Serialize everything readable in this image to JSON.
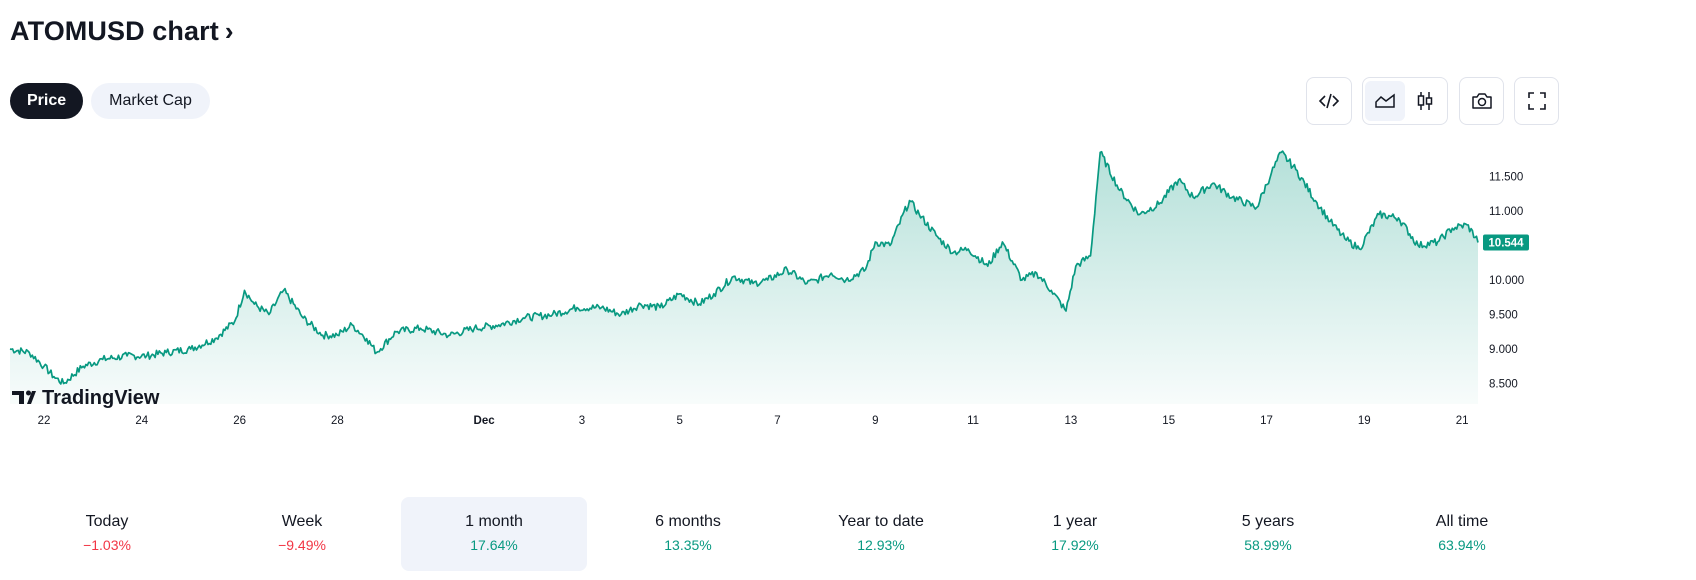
{
  "header": {
    "title": "ATOMUSD chart",
    "chevron": "›"
  },
  "tabs": [
    {
      "label": "Price",
      "active": true
    },
    {
      "label": "Market Cap",
      "active": false
    }
  ],
  "toolbar": {
    "buttons": [
      {
        "icon": "embed-code-icon"
      },
      {
        "icon": "area-chart-icon",
        "selected": true
      },
      {
        "icon": "candlestick-icon"
      },
      {
        "icon": "camera-icon"
      },
      {
        "icon": "fullscreen-icon"
      }
    ]
  },
  "logo": {
    "text": "TradingView"
  },
  "colors": {
    "line": "#089981",
    "up": "#089981",
    "down": "#f23645",
    "label_bg": "#089981"
  },
  "periods": [
    {
      "label": "Today",
      "change": "−1.03%",
      "direction": "down"
    },
    {
      "label": "Week",
      "change": "−9.49%",
      "direction": "down"
    },
    {
      "label": "1 month",
      "change": "17.64%",
      "direction": "up",
      "selected": true
    },
    {
      "label": "6 months",
      "change": "13.35%",
      "direction": "up"
    },
    {
      "label": "Year to date",
      "change": "12.93%",
      "direction": "up"
    },
    {
      "label": "1 year",
      "change": "17.92%",
      "direction": "up"
    },
    {
      "label": "5 years",
      "change": "58.99%",
      "direction": "up"
    },
    {
      "label": "All time",
      "change": "63.94%",
      "direction": "up"
    }
  ],
  "chart_data": {
    "type": "area",
    "symbol": "ATOMUSD",
    "x_ticks": [
      "22",
      "24",
      "26",
      "28",
      "Dec",
      "3",
      "5",
      "7",
      "9",
      "11",
      "13",
      "15",
      "17",
      "19",
      "21"
    ],
    "x_tick_days": [
      0,
      2,
      4,
      6,
      9,
      11,
      13,
      15,
      17,
      19,
      21,
      23,
      25,
      27,
      29
    ],
    "y_ticks": [
      "11.500",
      "11.000",
      "10.000",
      "9.500",
      "9.000",
      "8.500"
    ],
    "y_tick_values": [
      11.5,
      11.0,
      10.0,
      9.5,
      9.0,
      8.5
    ],
    "ylim": [
      8.3,
      12.0
    ],
    "xlim": [
      -0.7,
      29.35
    ],
    "last_price": 10.544,
    "last_price_label": "10.544",
    "series": [
      {
        "x": [
          -0.7,
          -0.3,
          0.0,
          0.2,
          0.4,
          0.8,
          1.2,
          1.7,
          2.1,
          2.5,
          3.0,
          3.5,
          3.9,
          4.1,
          4.3,
          4.6,
          4.9,
          5.3,
          5.7,
          6.0,
          6.3,
          6.6,
          6.8,
          7.2,
          7.7,
          8.3,
          8.8,
          9.3,
          9.8,
          10.4,
          10.9,
          11.4,
          11.8,
          12.2,
          12.6,
          13.0,
          13.4,
          13.7,
          14.1,
          14.5,
          14.8,
          15.2,
          15.6,
          15.8,
          16.1,
          16.4,
          16.8,
          17.0,
          17.3,
          17.7,
          17.9,
          18.3,
          18.6,
          18.9,
          19.3,
          19.6,
          20.0,
          20.3,
          20.6,
          20.9,
          21.1,
          21.4,
          21.6,
          22.0,
          22.4,
          22.8,
          23.2,
          23.5,
          23.9,
          24.3,
          24.8,
          25.1,
          25.3,
          25.6,
          26.0,
          26.3,
          26.6,
          26.9,
          27.3,
          27.7,
          28.1,
          28.5,
          28.8,
          29.1,
          29.35
        ],
        "y": [
          9.0,
          8.95,
          8.75,
          8.6,
          8.5,
          8.75,
          8.85,
          8.9,
          8.9,
          8.95,
          9.0,
          9.15,
          9.4,
          9.85,
          9.65,
          9.5,
          9.85,
          9.45,
          9.2,
          9.2,
          9.35,
          9.15,
          8.95,
          9.25,
          9.3,
          9.2,
          9.3,
          9.35,
          9.45,
          9.5,
          9.6,
          9.6,
          9.5,
          9.65,
          9.6,
          9.8,
          9.65,
          9.8,
          10.05,
          9.95,
          10.0,
          10.15,
          9.95,
          10.0,
          10.1,
          10.0,
          10.15,
          10.55,
          10.5,
          11.15,
          10.95,
          10.6,
          10.4,
          10.45,
          10.2,
          10.55,
          10.0,
          10.1,
          9.85,
          9.55,
          10.2,
          10.35,
          11.85,
          11.3,
          10.95,
          11.1,
          11.45,
          11.2,
          11.4,
          11.2,
          11.05,
          11.55,
          11.85,
          11.6,
          11.15,
          10.85,
          10.6,
          10.45,
          10.95,
          10.9,
          10.5,
          10.55,
          10.75,
          10.8,
          10.544
        ]
      }
    ]
  }
}
